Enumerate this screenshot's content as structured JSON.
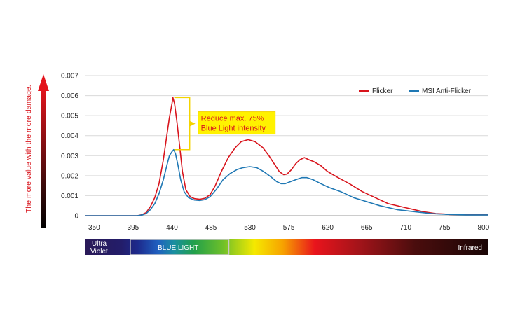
{
  "chart_data": {
    "type": "line",
    "title": "",
    "xlabel": "",
    "ylabel": "The more value with the more damage.",
    "xlim": [
      340,
      805
    ],
    "ylim": [
      0,
      0.007
    ],
    "x_ticks": [
      "350",
      "395",
      "440",
      "485",
      "530",
      "575",
      "620",
      "665",
      "710",
      "755",
      "800"
    ],
    "y_ticks": [
      "0",
      "0.001",
      "0.002",
      "0.003",
      "0.004",
      "0.005",
      "0.006",
      "0.007"
    ],
    "grid": "horizontal",
    "legend_position": "top-right",
    "series": [
      {
        "name": "Flicker",
        "color": "#d8141c",
        "points": [
          [
            340,
            0
          ],
          [
            350,
            0
          ],
          [
            380,
            0
          ],
          [
            400,
            0
          ],
          [
            405,
            5e-05
          ],
          [
            410,
            0.00015
          ],
          [
            415,
            0.00045
          ],
          [
            420,
            0.0009
          ],
          [
            425,
            0.0016
          ],
          [
            430,
            0.0028
          ],
          [
            434,
            0.004
          ],
          [
            437,
            0.0049
          ],
          [
            440,
            0.0056
          ],
          [
            441,
            0.0059
          ],
          [
            443,
            0.0056
          ],
          [
            446,
            0.0046
          ],
          [
            449,
            0.0034
          ],
          [
            452,
            0.0022
          ],
          [
            456,
            0.0013
          ],
          [
            461,
            0.00095
          ],
          [
            466,
            0.00085
          ],
          [
            472,
            0.00082
          ],
          [
            478,
            0.00087
          ],
          [
            484,
            0.00105
          ],
          [
            490,
            0.0015
          ],
          [
            497,
            0.0022
          ],
          [
            505,
            0.0029
          ],
          [
            513,
            0.0034
          ],
          [
            520,
            0.0037
          ],
          [
            528,
            0.0038
          ],
          [
            536,
            0.0037
          ],
          [
            545,
            0.0034
          ],
          [
            552,
            0.003
          ],
          [
            558,
            0.0026
          ],
          [
            564,
            0.0022
          ],
          [
            569,
            0.00205
          ],
          [
            573,
            0.00208
          ],
          [
            578,
            0.0023
          ],
          [
            583,
            0.0026
          ],
          [
            588,
            0.0028
          ],
          [
            593,
            0.0029
          ],
          [
            598,
            0.0028
          ],
          [
            604,
            0.0027
          ],
          [
            612,
            0.0025
          ],
          [
            620,
            0.0022
          ],
          [
            632,
            0.0019
          ],
          [
            645,
            0.0016
          ],
          [
            660,
            0.0012
          ],
          [
            675,
            0.0009
          ],
          [
            690,
            0.0006
          ],
          [
            710,
            0.0004
          ],
          [
            730,
            0.0002
          ],
          [
            745,
            0.0001
          ],
          [
            755,
            8e-05
          ],
          [
            760,
            6e-05
          ],
          [
            780,
            5e-05
          ],
          [
            805,
            5e-05
          ]
        ]
      },
      {
        "name": "MSI Anti-Flicker",
        "color": "#1f78b4",
        "points": [
          [
            340,
            0
          ],
          [
            350,
            0
          ],
          [
            380,
            0
          ],
          [
            400,
            0
          ],
          [
            405,
            3e-05
          ],
          [
            410,
            0.0001
          ],
          [
            415,
            0.0003
          ],
          [
            420,
            0.0006
          ],
          [
            425,
            0.0011
          ],
          [
            430,
            0.0018
          ],
          [
            434,
            0.0025
          ],
          [
            437,
            0.003
          ],
          [
            440,
            0.0032
          ],
          [
            442,
            0.0033
          ],
          [
            444,
            0.0031
          ],
          [
            447,
            0.0025
          ],
          [
            450,
            0.0018
          ],
          [
            454,
            0.0012
          ],
          [
            459,
            0.0009
          ],
          [
            466,
            0.00078
          ],
          [
            472,
            0.00076
          ],
          [
            478,
            0.0008
          ],
          [
            484,
            0.00095
          ],
          [
            491,
            0.0013
          ],
          [
            499,
            0.0018
          ],
          [
            507,
            0.0021
          ],
          [
            515,
            0.0023
          ],
          [
            522,
            0.0024
          ],
          [
            530,
            0.00245
          ],
          [
            538,
            0.0024
          ],
          [
            546,
            0.0022
          ],
          [
            554,
            0.00195
          ],
          [
            561,
            0.0017
          ],
          [
            566,
            0.0016
          ],
          [
            571,
            0.0016
          ],
          [
            577,
            0.0017
          ],
          [
            583,
            0.0018
          ],
          [
            590,
            0.0019
          ],
          [
            596,
            0.0019
          ],
          [
            603,
            0.0018
          ],
          [
            612,
            0.0016
          ],
          [
            622,
            0.0014
          ],
          [
            635,
            0.0012
          ],
          [
            650,
            0.0009
          ],
          [
            665,
            0.0007
          ],
          [
            680,
            0.0005
          ],
          [
            700,
            0.0003
          ],
          [
            720,
            0.0002
          ],
          [
            740,
            0.0001
          ],
          [
            755,
            7e-05
          ],
          [
            780,
            4e-05
          ],
          [
            805,
            4e-05
          ]
        ]
      }
    ],
    "annotations": [
      {
        "text_line1": "Reduce  max. 75%",
        "text_line2": "Blue Light intensity",
        "x": 441,
        "y_top": 0.0059,
        "y_bottom": 0.0033
      }
    ],
    "spectrum_bar": {
      "ultraviolet_line1": "Ultra",
      "ultraviolet_line2": "Violet",
      "blue_light_label": "BLUE LIGHT",
      "infrared_label": "Infrared",
      "blue_light_range": [
        395,
        500
      ]
    },
    "colors": {
      "flicker": "#d8141c",
      "anti_flicker": "#1f78b4",
      "callout_fill": "#fff200",
      "callout_border": "#f4d400",
      "grid": "#d9d9d9"
    }
  }
}
